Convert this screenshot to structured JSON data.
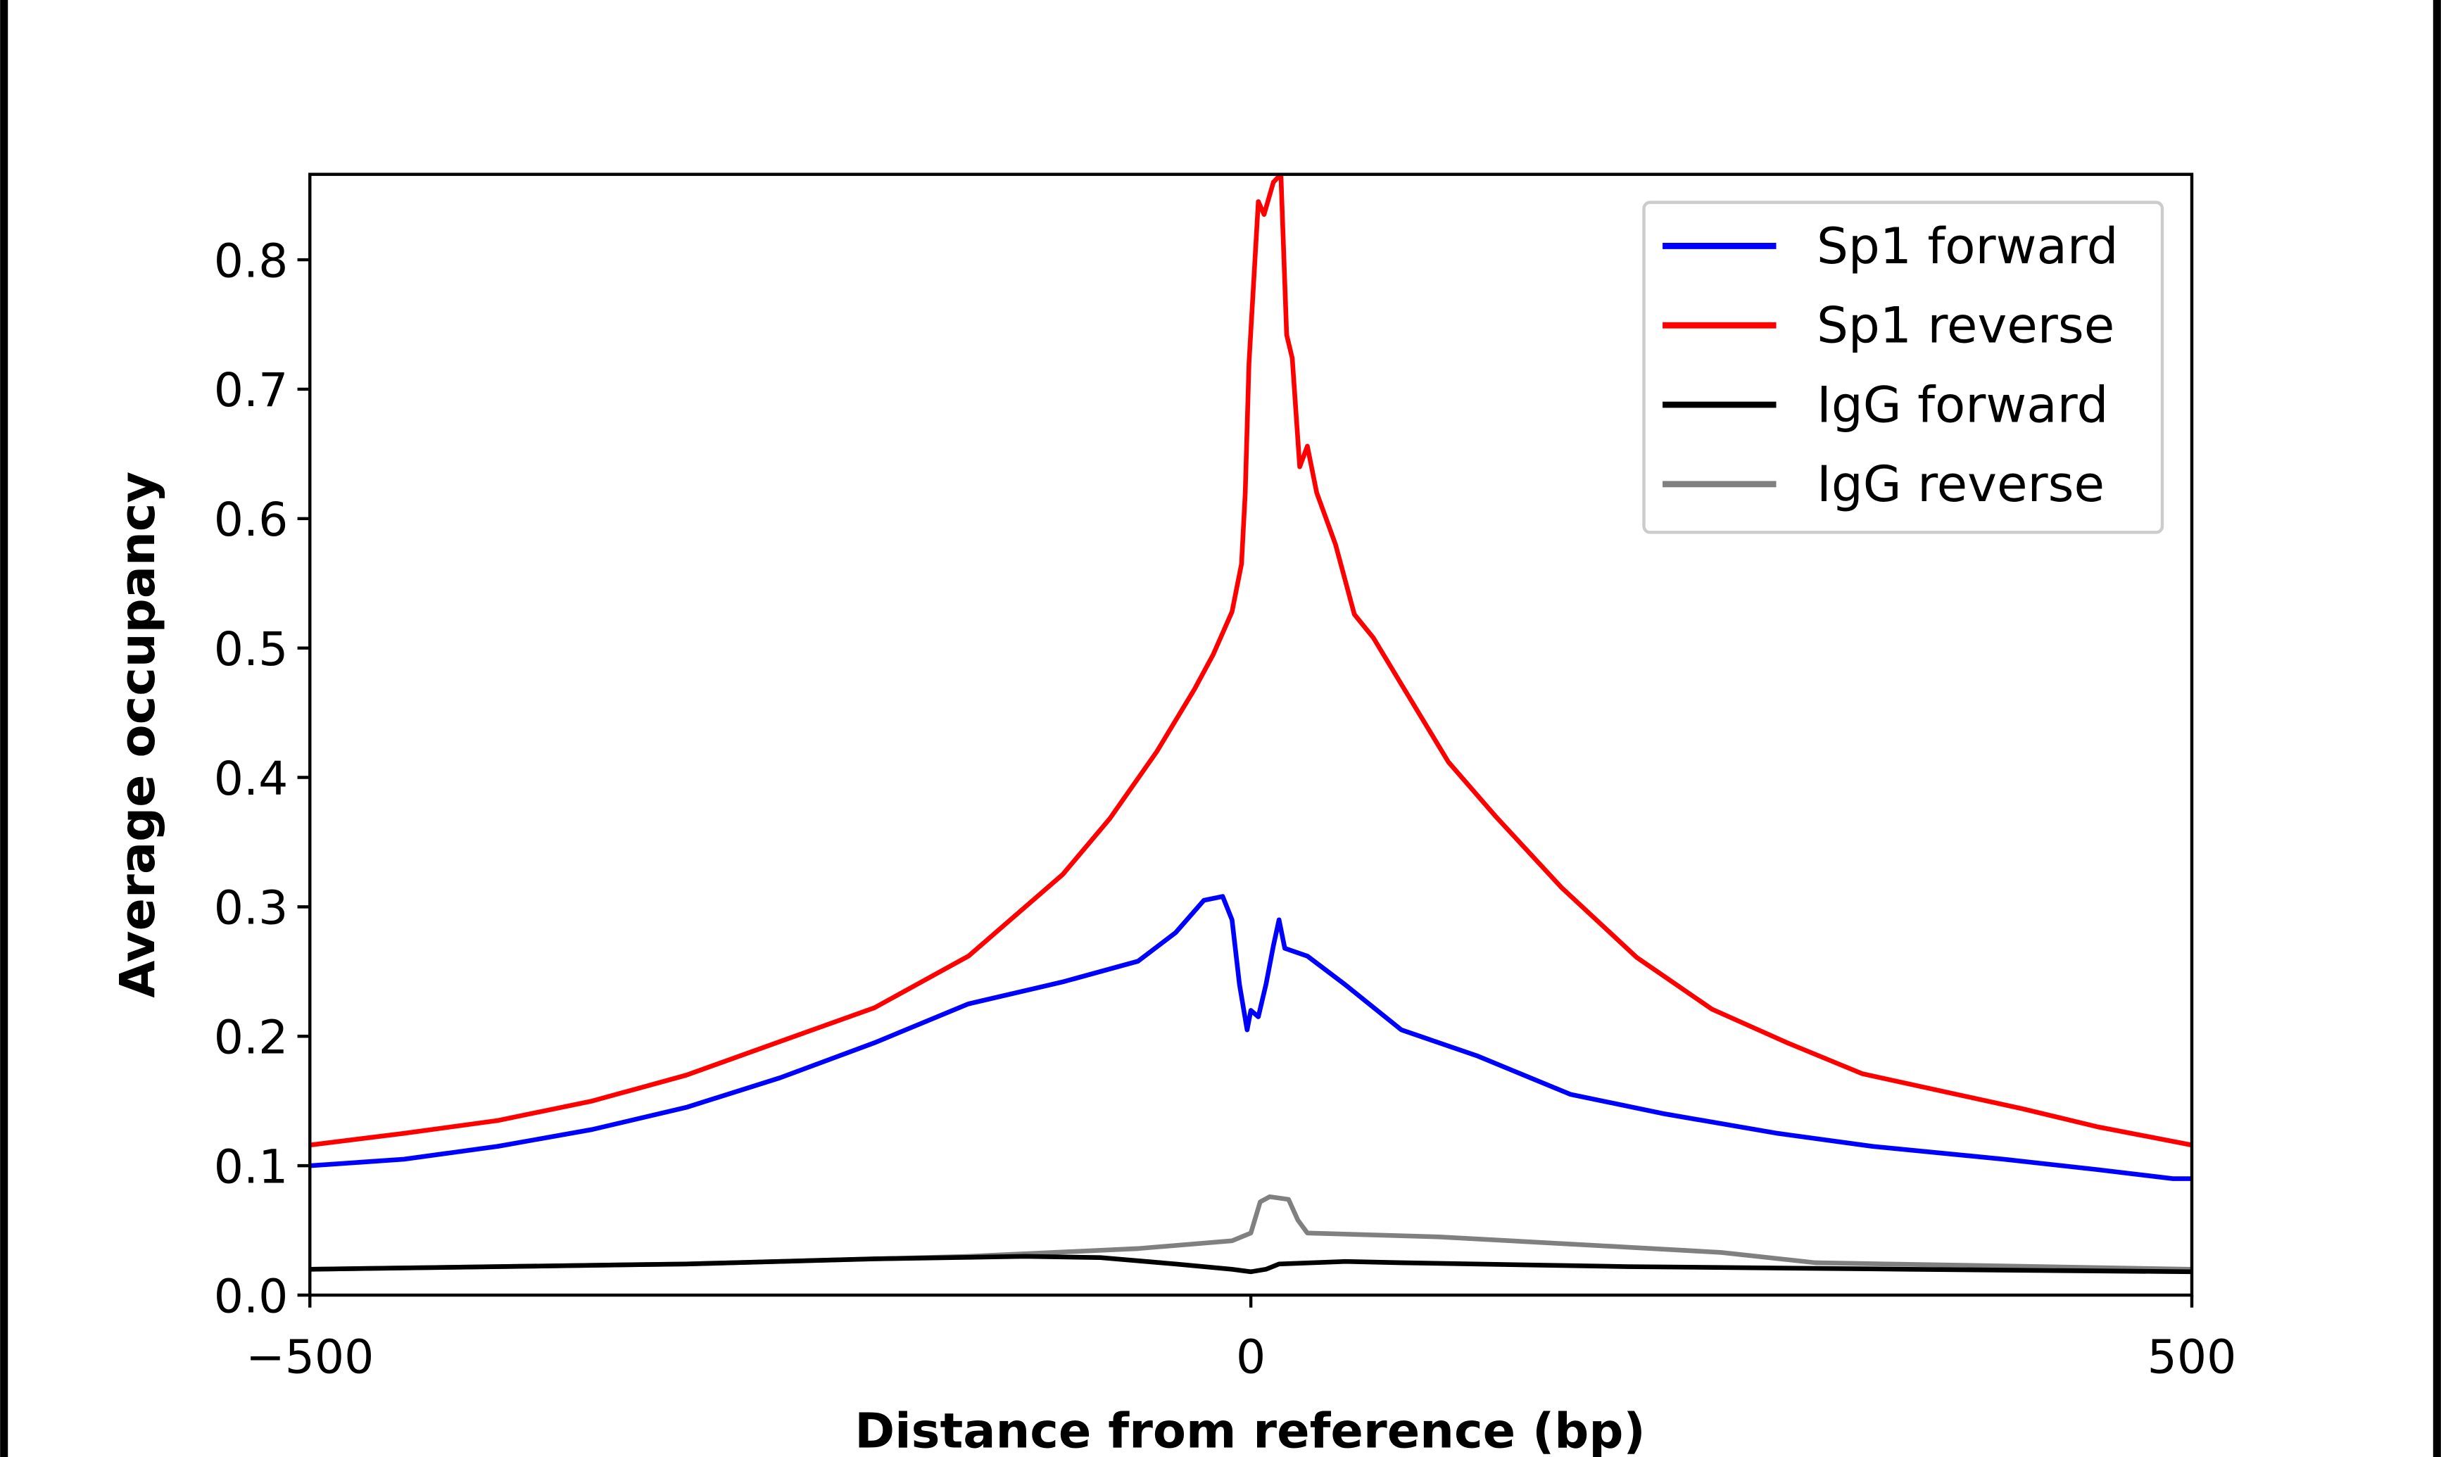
{
  "chart_data": {
    "type": "line",
    "title": "",
    "xlabel": "Distance from reference (bp)",
    "ylabel": "Average occupancy",
    "xlim": [
      -500,
      500
    ],
    "ylim": [
      0,
      0.866
    ],
    "xticks": [
      -500,
      0,
      500
    ],
    "xtick_labels": [
      "−500",
      "0",
      "500"
    ],
    "yticks": [
      0.0,
      0.1,
      0.2,
      0.3,
      0.4,
      0.5,
      0.6,
      0.7,
      0.8
    ],
    "ytick_labels": [
      "0.0",
      "0.1",
      "0.2",
      "0.3",
      "0.4",
      "0.5",
      "0.6",
      "0.7",
      "0.8"
    ],
    "grid": false,
    "legend_position": "top-right",
    "series": [
      {
        "name": "Sp1 forward",
        "color": "#0000ff",
        "x": [
          -500,
          -450,
          -400,
          -350,
          -300,
          -250,
          -200,
          -150,
          -100,
          -60,
          -40,
          -25,
          -15,
          -10,
          -6,
          -2,
          0,
          4,
          8,
          12,
          15,
          18,
          30,
          50,
          80,
          120,
          170,
          220,
          280,
          330,
          400,
          450,
          490,
          500
        ],
        "y": [
          0.1,
          0.105,
          0.115,
          0.128,
          0.145,
          0.168,
          0.195,
          0.225,
          0.242,
          0.258,
          0.28,
          0.305,
          0.308,
          0.29,
          0.24,
          0.205,
          0.22,
          0.215,
          0.24,
          0.27,
          0.29,
          0.268,
          0.262,
          0.24,
          0.205,
          0.185,
          0.155,
          0.14,
          0.125,
          0.115,
          0.105,
          0.097,
          0.09,
          0.09
        ]
      },
      {
        "name": "Sp1 reverse",
        "color": "#ff0000",
        "x": [
          -500,
          -450,
          -400,
          -350,
          -300,
          -250,
          -200,
          -150,
          -100,
          -75,
          -50,
          -30,
          -20,
          -10,
          -5,
          -3,
          -1,
          4,
          7,
          12,
          16,
          19,
          22,
          26,
          30,
          35,
          45,
          55,
          65,
          80,
          105,
          130,
          165,
          205,
          245,
          285,
          325,
          410,
          450,
          500
        ],
        "y": [
          0.116,
          0.125,
          0.135,
          0.15,
          0.17,
          0.196,
          0.222,
          0.262,
          0.325,
          0.368,
          0.42,
          0.468,
          0.495,
          0.528,
          0.565,
          0.62,
          0.72,
          0.845,
          0.835,
          0.86,
          0.866,
          0.742,
          0.724,
          0.64,
          0.656,
          0.62,
          0.58,
          0.526,
          0.508,
          0.472,
          0.412,
          0.37,
          0.315,
          0.261,
          0.221,
          0.195,
          0.171,
          0.144,
          0.13,
          0.116
        ]
      },
      {
        "name": "IgG forward",
        "color": "#000000",
        "x": [
          -500,
          -300,
          -200,
          -120,
          -80,
          -40,
          -10,
          0,
          8,
          15,
          50,
          80,
          200,
          350,
          500
        ],
        "y": [
          0.02,
          0.024,
          0.028,
          0.03,
          0.029,
          0.024,
          0.02,
          0.018,
          0.02,
          0.024,
          0.026,
          0.025,
          0.022,
          0.02,
          0.018
        ]
      },
      {
        "name": "IgG reverse",
        "color": "#808080",
        "x": [
          -500,
          -300,
          -150,
          -60,
          -10,
          0,
          5,
          10,
          20,
          25,
          30,
          100,
          200,
          250,
          300,
          500
        ],
        "y": [
          0.02,
          0.024,
          0.03,
          0.036,
          0.042,
          0.048,
          0.072,
          0.076,
          0.074,
          0.058,
          0.048,
          0.045,
          0.037,
          0.033,
          0.025,
          0.02
        ]
      }
    ]
  }
}
